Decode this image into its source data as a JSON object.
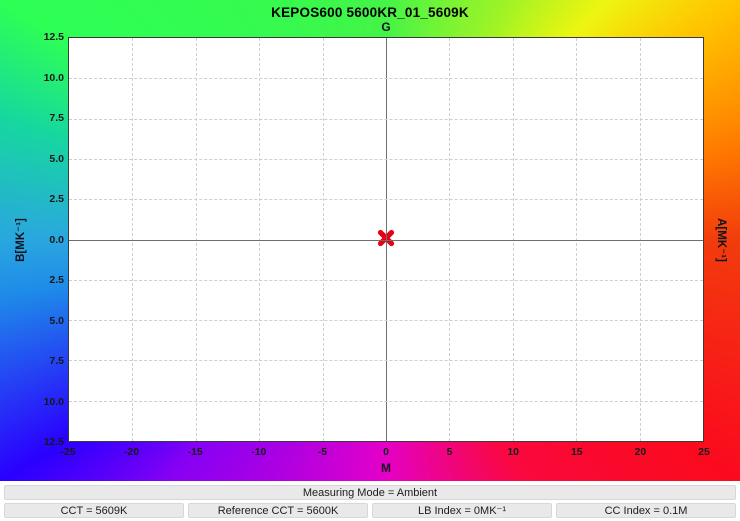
{
  "chart_data": {
    "type": "scatter",
    "title": "KEPOS600 5600KR_01_5609K",
    "edge_labels": {
      "top_center": "G",
      "bottom_center": "M",
      "left_middle": "B[MK⁻¹]",
      "right_middle": "A[MK⁻¹]"
    },
    "x_axis": {
      "range": [
        -25,
        25
      ],
      "ticks": [
        -25,
        -20,
        -15,
        -10,
        -5,
        0,
        5,
        10,
        15,
        20,
        25
      ],
      "tick_labels": [
        "-25",
        "-20",
        "-15",
        "-10",
        "-5",
        "0",
        "5",
        "10",
        "15",
        "20",
        "25"
      ]
    },
    "y_axis": {
      "range": [
        -12.5,
        12.5
      ],
      "ticks": [
        12.5,
        10,
        7.5,
        5,
        2.5,
        0,
        -2.5,
        -5,
        -7.5,
        -10,
        -12.5
      ],
      "tick_labels": [
        "12.5",
        "10.0",
        "7.5",
        "5.0",
        "2.5",
        "0.0",
        "2.5",
        "5.0",
        "7.5",
        "10.0",
        "12.5"
      ]
    },
    "grid": true,
    "points": [
      {
        "x": 0,
        "y": 0.1,
        "marker": "x",
        "color": "#e60014"
      }
    ]
  },
  "status": {
    "measuring_mode": "Measuring Mode = Ambient",
    "cells": [
      "CCT = 5609K",
      "Reference CCT = 5600K",
      "LB Index = 0MK⁻¹",
      "CC Index = 0.1M"
    ]
  },
  "colors": {
    "marker": "#e60014",
    "gradient_top_left": "#2eff55",
    "gradient_top_right": "#ffc400",
    "gradient_bottom_left": "#2a00ff",
    "gradient_bottom_right": "#fb0a1e",
    "gradient_bottom_center": "#e400c8",
    "gradient_left_center": "#2aa6e0",
    "status_bar_background": "#e9e9e9"
  }
}
